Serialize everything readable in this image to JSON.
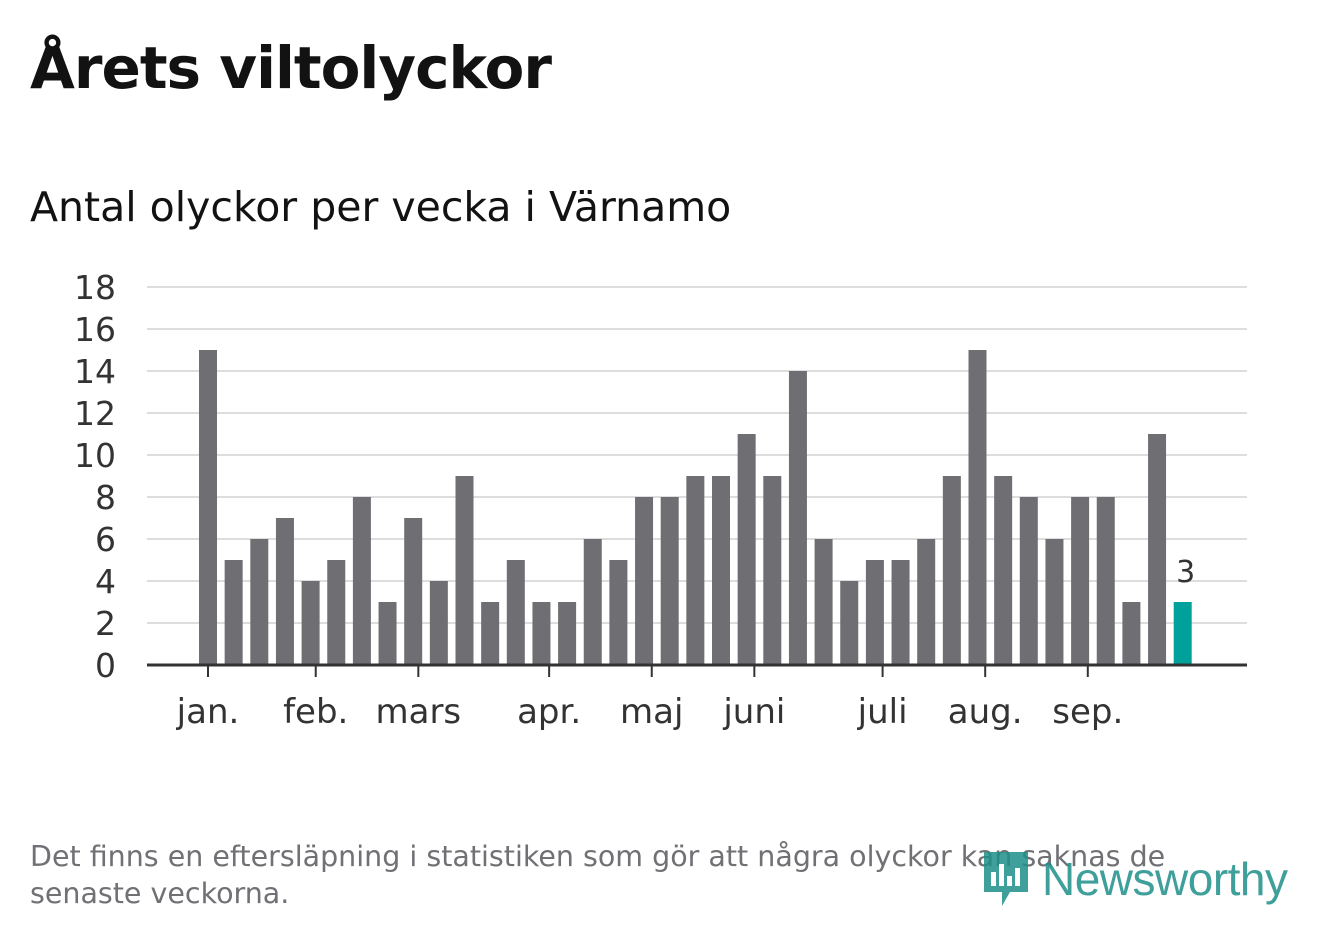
{
  "title": "Årets viltolyckor",
  "subtitle": "Antal olyckor per vecka i Värnamo",
  "footnote": "Det finns en eftersläpning i statistiken som gör att några olyckor kan saknas de senaste veckorna.",
  "logo": {
    "text": "Newsworthy",
    "icon": "newsworthy-chart-icon"
  },
  "colors": {
    "bar": "#6f6e73",
    "highlight": "#00a19a",
    "grid": "#dddddd",
    "axis": "#333333"
  },
  "chart_data": {
    "type": "bar",
    "title": "Antal olyckor per vecka i Värnamo",
    "xlabel": "",
    "ylabel": "",
    "ylim": [
      0,
      18
    ],
    "yticks": [
      0,
      2,
      4,
      6,
      8,
      10,
      12,
      14,
      16,
      18
    ],
    "grid": true,
    "values": [
      15,
      5,
      6,
      7,
      4,
      5,
      8,
      3,
      7,
      4,
      9,
      3,
      5,
      3,
      3,
      6,
      5,
      8,
      8,
      9,
      9,
      11,
      9,
      14,
      6,
      4,
      5,
      5,
      6,
      9,
      15,
      9,
      8,
      6,
      8,
      8,
      3,
      11,
      3
    ],
    "highlight_index": 38,
    "highlight_label": "3",
    "month_ticks": [
      {
        "label": "jan.",
        "week_index": 0
      },
      {
        "label": "feb.",
        "week_index": 4.2
      },
      {
        "label": "mars",
        "week_index": 8.2
      },
      {
        "label": "apr.",
        "week_index": 13.3
      },
      {
        "label": "maj",
        "week_index": 17.3
      },
      {
        "label": "juni",
        "week_index": 21.3
      },
      {
        "label": "juli",
        "week_index": 26.3
      },
      {
        "label": "aug.",
        "week_index": 30.3
      },
      {
        "label": "sep.",
        "week_index": 34.3
      }
    ]
  }
}
